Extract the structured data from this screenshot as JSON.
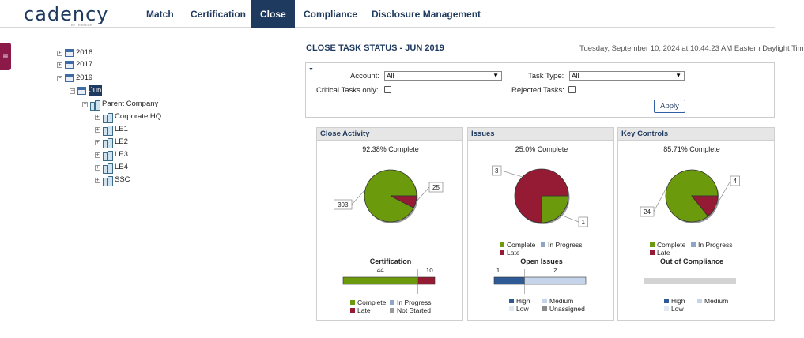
{
  "nav": {
    "logo": "cadency",
    "logo_sub": "BY TRINTECH",
    "items": [
      {
        "label": "Match",
        "active": false
      },
      {
        "label": "Certification",
        "active": false
      },
      {
        "label": "Close",
        "active": true
      },
      {
        "label": "Compliance",
        "active": false
      },
      {
        "label": "Disclosure Management",
        "active": false
      }
    ]
  },
  "menu_handle": "≡",
  "tree": {
    "years": [
      "2016",
      "2017",
      "2019"
    ],
    "period": "Jun",
    "root": "Parent Company",
    "entities": [
      "Corporate HQ",
      "LE1",
      "LE2",
      "LE3",
      "LE4",
      "SSC"
    ]
  },
  "header": {
    "title": "CLOSE TASK STATUS - JUN 2019",
    "timestamp": "Tuesday, September 10, 2024 at 10:44:23 AM Eastern Daylight Tim"
  },
  "filters": {
    "account_label": "Account:",
    "account_value": "All",
    "task_type_label": "Task Type:",
    "task_type_value": "All",
    "critical_label": "Critical Tasks only:",
    "rejected_label": "Rejected Tasks:",
    "apply_label": "Apply"
  },
  "colors": {
    "complete": "#6b9a0d",
    "late": "#951b34",
    "in_progress": "#8fa5c4",
    "not_started": "#9a9a9a",
    "high": "#2e5a96",
    "medium": "#c5d4ea",
    "low": "#e3e9f2",
    "unassigned": "#8a8a8a",
    "empty_bar": "#d3d3d3"
  },
  "panels": {
    "close_activity": {
      "title": "Close Activity",
      "complete_text": "92.38% Complete",
      "pie": [
        {
          "label": "303",
          "value": 303,
          "status": "complete"
        },
        {
          "label": "25",
          "value": 25,
          "status": "late"
        }
      ],
      "legend": [
        "Complete",
        "In Progress",
        "Late",
        "Not Started"
      ],
      "bar_title": "Certification",
      "bar": [
        {
          "label": "44",
          "value": 44,
          "status": "complete"
        },
        {
          "label": "10",
          "value": 10,
          "status": "late"
        }
      ]
    },
    "issues": {
      "title": "Issues",
      "complete_text": "25.0% Complete",
      "pie": [
        {
          "label": "1",
          "value": 1,
          "status": "complete"
        },
        {
          "label": "3",
          "value": 3,
          "status": "late"
        }
      ],
      "legend": [
        "Complete",
        "In Progress",
        "Late"
      ],
      "bar_title": "Open Issues",
      "bar": [
        {
          "label": "1",
          "value": 1,
          "status": "high"
        },
        {
          "label": "2",
          "value": 2,
          "status": "medium"
        }
      ],
      "bar_legend": [
        "High",
        "Medium",
        "Low",
        "Unassigned"
      ]
    },
    "key_controls": {
      "title": "Key Controls",
      "complete_text": "85.71% Complete",
      "pie": [
        {
          "label": "24",
          "value": 24,
          "status": "complete"
        },
        {
          "label": "4",
          "value": 4,
          "status": "late"
        }
      ],
      "legend": [
        "Complete",
        "In Progress",
        "Late"
      ],
      "bar_title": "Out of Compliance",
      "bar": [],
      "bar_legend": [
        "High",
        "Medium",
        "Low"
      ]
    }
  }
}
